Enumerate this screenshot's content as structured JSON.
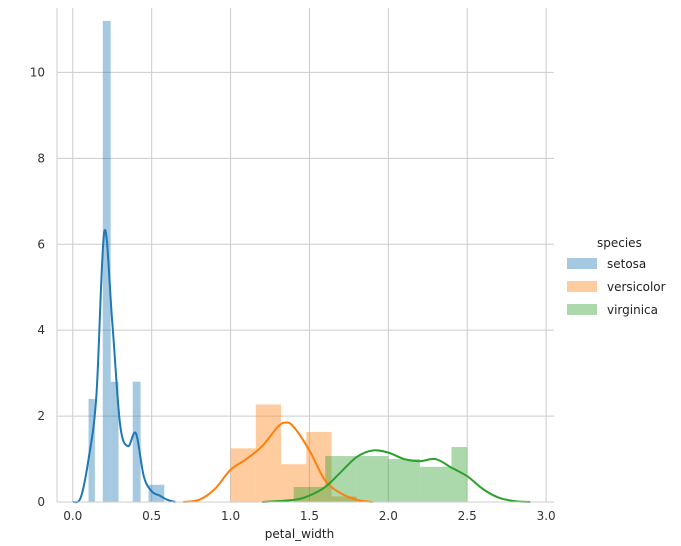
{
  "chart_data": {
    "type": "bar",
    "xlabel": "petal_width",
    "ylabel": "",
    "xlim": [
      -0.1,
      3.05
    ],
    "ylim": [
      0,
      11.5
    ],
    "x_ticks": [
      "0.0",
      "0.5",
      "1.0",
      "1.5",
      "2.0",
      "2.5",
      "3.0"
    ],
    "y_ticks": [
      "0",
      "2",
      "4",
      "6",
      "8",
      "10"
    ],
    "grid": true,
    "legend": {
      "title": "species",
      "position": "right"
    },
    "colors": {
      "setosa": "#1f77b4",
      "versicolor": "#ff7f0e",
      "virginica": "#2ca02c",
      "grid": "#cccccc"
    },
    "series": [
      {
        "name": "setosa",
        "hist": [
          {
            "x0": 0.1,
            "x1": 0.14,
            "y": 2.4
          },
          {
            "x0": 0.14,
            "x1": 0.19,
            "y": 0.0
          },
          {
            "x0": 0.19,
            "x1": 0.24,
            "y": 11.2
          },
          {
            "x0": 0.24,
            "x1": 0.29,
            "y": 2.8
          },
          {
            "x0": 0.29,
            "x1": 0.34,
            "y": 0.0
          },
          {
            "x0": 0.34,
            "x1": 0.38,
            "y": 0.0
          },
          {
            "x0": 0.38,
            "x1": 0.43,
            "y": 2.8
          },
          {
            "x0": 0.43,
            "x1": 0.48,
            "y": 0.0
          },
          {
            "x0": 0.48,
            "x1": 0.53,
            "y": 0.4
          },
          {
            "x0": 0.53,
            "x1": 0.58,
            "y": 0.4
          },
          {
            "x0": 0.58,
            "x1": 0.62,
            "y": 0.0
          }
        ],
        "kde": [
          [
            0.0,
            0.0
          ],
          [
            0.05,
            0.1
          ],
          [
            0.1,
            1.0
          ],
          [
            0.15,
            2.5
          ],
          [
            0.2,
            6.3
          ],
          [
            0.25,
            4.2
          ],
          [
            0.3,
            1.8
          ],
          [
            0.35,
            1.3
          ],
          [
            0.4,
            1.6
          ],
          [
            0.45,
            0.6
          ],
          [
            0.5,
            0.25
          ],
          [
            0.55,
            0.15
          ],
          [
            0.6,
            0.05
          ],
          [
            0.65,
            0.0
          ]
        ]
      },
      {
        "name": "versicolor",
        "hist": [
          {
            "x0": 1.0,
            "x1": 1.16,
            "y": 1.25
          },
          {
            "x0": 1.16,
            "x1": 1.32,
            "y": 2.27
          },
          {
            "x0": 1.32,
            "x1": 1.48,
            "y": 0.88
          },
          {
            "x0": 1.48,
            "x1": 1.64,
            "y": 1.63
          },
          {
            "x0": 1.64,
            "x1": 1.8,
            "y": 0.13
          }
        ],
        "kde": [
          [
            0.7,
            0.0
          ],
          [
            0.8,
            0.05
          ],
          [
            0.9,
            0.3
          ],
          [
            1.0,
            0.75
          ],
          [
            1.1,
            1.0
          ],
          [
            1.2,
            1.3
          ],
          [
            1.3,
            1.75
          ],
          [
            1.35,
            1.85
          ],
          [
            1.4,
            1.75
          ],
          [
            1.5,
            1.2
          ],
          [
            1.6,
            0.5
          ],
          [
            1.7,
            0.2
          ],
          [
            1.8,
            0.05
          ],
          [
            1.9,
            0.0
          ]
        ]
      },
      {
        "name": "virginica",
        "hist": [
          {
            "x0": 1.4,
            "x1": 1.6,
            "y": 0.35
          },
          {
            "x0": 1.6,
            "x1": 1.8,
            "y": 1.07
          },
          {
            "x0": 1.8,
            "x1": 2.0,
            "y": 1.07
          },
          {
            "x0": 2.0,
            "x1": 2.2,
            "y": 1.0
          },
          {
            "x0": 2.2,
            "x1": 2.4,
            "y": 0.82
          },
          {
            "x0": 2.4,
            "x1": 2.5,
            "y": 1.28
          }
        ],
        "kde": [
          [
            1.2,
            0.0
          ],
          [
            1.4,
            0.05
          ],
          [
            1.5,
            0.15
          ],
          [
            1.6,
            0.35
          ],
          [
            1.7,
            0.7
          ],
          [
            1.8,
            1.05
          ],
          [
            1.9,
            1.2
          ],
          [
            2.0,
            1.15
          ],
          [
            2.1,
            1.0
          ],
          [
            2.2,
            0.95
          ],
          [
            2.3,
            1.0
          ],
          [
            2.4,
            0.8
          ],
          [
            2.5,
            0.6
          ],
          [
            2.6,
            0.3
          ],
          [
            2.7,
            0.1
          ],
          [
            2.8,
            0.02
          ],
          [
            2.9,
            0.0
          ]
        ]
      }
    ]
  }
}
